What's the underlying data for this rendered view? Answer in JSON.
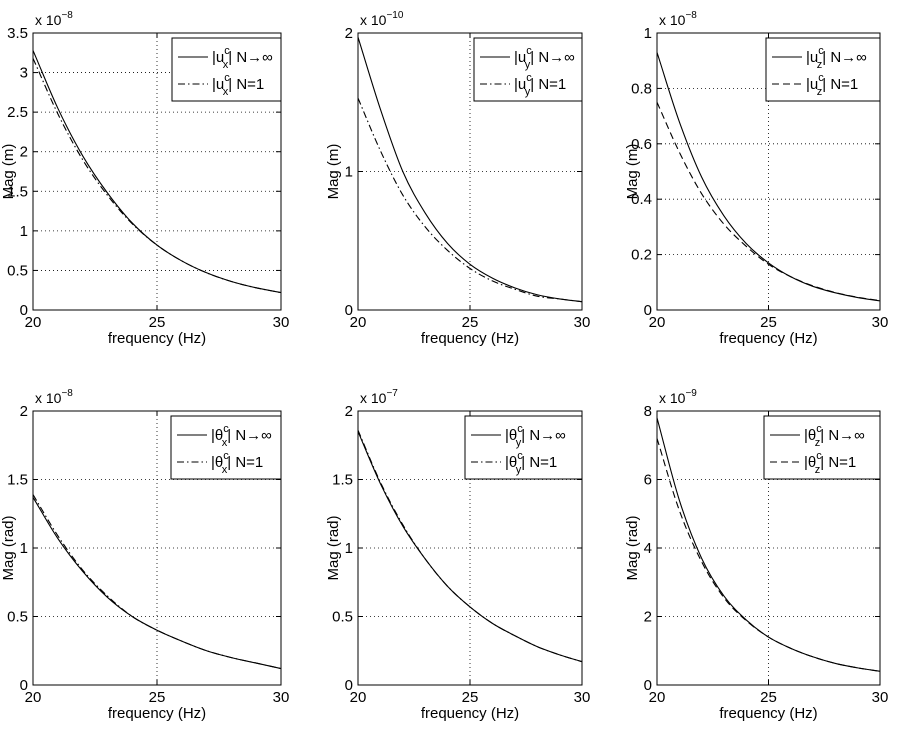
{
  "chart_data": [
    {
      "type": "line",
      "xlabel": "frequency (Hz)",
      "ylabel": "Mag (m)",
      "exponent_base": "x 10",
      "exponent_power": "−8",
      "xlim": [
        20,
        30
      ],
      "ylim": [
        0,
        3.5
      ],
      "xticks": [
        "20",
        "25",
        "30"
      ],
      "yticks": [
        "0",
        "0.5",
        "1",
        "1.5",
        "2",
        "2.5",
        "3",
        "3.5"
      ],
      "grid": true,
      "legend_position": "top-right",
      "series": [
        {
          "name": "|u_x^c| N→∞",
          "label_base": "|u",
          "label_sup": "c",
          "label_sub": "x",
          "label_rest": "| N→∞",
          "style": "solid",
          "x": [
            20,
            21,
            22,
            23,
            24,
            25,
            26,
            27,
            28,
            29,
            30
          ],
          "y": [
            3.28,
            2.55,
            1.95,
            1.48,
            1.1,
            0.82,
            0.62,
            0.47,
            0.36,
            0.28,
            0.22
          ]
        },
        {
          "name": "|u_x^c| N=1",
          "label_base": "|u",
          "label_sup": "c",
          "label_sub": "x",
          "label_rest": "| N=1",
          "style": "dashdot",
          "x": [
            20,
            21,
            22,
            23,
            24,
            25,
            26,
            27,
            28,
            29,
            30
          ],
          "y": [
            3.18,
            2.48,
            1.9,
            1.45,
            1.09,
            0.82,
            0.62,
            0.47,
            0.36,
            0.28,
            0.22
          ]
        }
      ]
    },
    {
      "type": "line",
      "xlabel": "frequency (Hz)",
      "ylabel": "Mag (m)",
      "exponent_base": "x 10",
      "exponent_power": "−10",
      "xlim": [
        20,
        30
      ],
      "ylim": [
        0,
        2
      ],
      "xticks": [
        "20",
        "25",
        "30"
      ],
      "yticks": [
        "0",
        "1",
        "2"
      ],
      "grid": true,
      "legend_position": "top-right",
      "series": [
        {
          "name": "|u_y^c| N→∞",
          "label_base": "|u",
          "label_sup": "c",
          "label_sub": "y",
          "label_rest": "| N→∞",
          "style": "solid",
          "x": [
            20,
            21,
            22,
            23,
            24,
            25,
            26,
            27,
            28,
            29,
            30
          ],
          "y": [
            1.97,
            1.45,
            1.0,
            0.7,
            0.48,
            0.33,
            0.23,
            0.16,
            0.11,
            0.08,
            0.06
          ]
        },
        {
          "name": "|u_y^c| N=1",
          "label_base": "|u",
          "label_sup": "c",
          "label_sub": "y",
          "label_rest": "| N=1",
          "style": "dashdot",
          "x": [
            20,
            21,
            22,
            23,
            24,
            25,
            26,
            27,
            28,
            29,
            30
          ],
          "y": [
            1.53,
            1.15,
            0.83,
            0.6,
            0.43,
            0.3,
            0.21,
            0.15,
            0.1,
            0.08,
            0.06
          ]
        }
      ]
    },
    {
      "type": "line",
      "xlabel": "frequency (Hz)",
      "ylabel": "Mag (m)",
      "exponent_base": "x 10",
      "exponent_power": "−8",
      "xlim": [
        20,
        30
      ],
      "ylim": [
        0,
        1
      ],
      "xticks": [
        "20",
        "25",
        "30"
      ],
      "yticks": [
        "0",
        "0.2",
        "0.4",
        "0.6",
        "0.8",
        "1"
      ],
      "grid": true,
      "legend_position": "top-right",
      "series": [
        {
          "name": "|u_z^c| N→∞",
          "label_base": "|u",
          "label_sup": "c",
          "label_sub": "z",
          "label_rest": "| N→∞",
          "style": "solid",
          "x": [
            20,
            21,
            22,
            23,
            24,
            25,
            26,
            27,
            28,
            29,
            30
          ],
          "y": [
            0.93,
            0.68,
            0.48,
            0.34,
            0.24,
            0.17,
            0.12,
            0.085,
            0.062,
            0.045,
            0.033
          ]
        },
        {
          "name": "|u_z^c| N=1",
          "label_base": "|u",
          "label_sup": "c",
          "label_sub": "z",
          "label_rest": "| N=1",
          "style": "dashed",
          "x": [
            20,
            21,
            22,
            23,
            24,
            25,
            26,
            27,
            28,
            29,
            30
          ],
          "y": [
            0.75,
            0.57,
            0.42,
            0.31,
            0.23,
            0.165,
            0.12,
            0.087,
            0.063,
            0.046,
            0.034
          ]
        }
      ]
    },
    {
      "type": "line",
      "xlabel": "frequency (Hz)",
      "ylabel": "Mag (rad)",
      "exponent_base": "x 10",
      "exponent_power": "−8",
      "xlim": [
        20,
        30
      ],
      "ylim": [
        0,
        2
      ],
      "xticks": [
        "20",
        "25",
        "30"
      ],
      "yticks": [
        "0",
        "0.5",
        "1",
        "1.5",
        "2"
      ],
      "grid": true,
      "legend_position": "top-right",
      "series": [
        {
          "name": "|θ_x^c| N→∞",
          "label_base": "|θ",
          "label_sup": "c",
          "label_sub": "x",
          "label_rest": "| N→∞",
          "style": "solid",
          "x": [
            20,
            21,
            22,
            23,
            24,
            25,
            26,
            27,
            28,
            29,
            30
          ],
          "y": [
            1.37,
            1.07,
            0.83,
            0.64,
            0.5,
            0.4,
            0.32,
            0.25,
            0.2,
            0.16,
            0.12
          ]
        },
        {
          "name": "|θ_x^c| N=1",
          "label_base": "|θ",
          "label_sup": "c",
          "label_sub": "x",
          "label_rest": "| N=1",
          "style": "dashdot",
          "x": [
            20,
            21,
            22,
            23,
            24,
            25,
            26,
            27,
            28,
            29,
            30
          ],
          "y": [
            1.39,
            1.09,
            0.84,
            0.65,
            0.5,
            0.4,
            0.32,
            0.25,
            0.2,
            0.16,
            0.12
          ]
        }
      ]
    },
    {
      "type": "line",
      "xlabel": "frequency (Hz)",
      "ylabel": "Mag (rad)",
      "exponent_base": "x 10",
      "exponent_power": "−7",
      "xlim": [
        20,
        30
      ],
      "ylim": [
        0,
        2
      ],
      "xticks": [
        "20",
        "25",
        "30"
      ],
      "yticks": [
        "0",
        "0.5",
        "1",
        "1.5",
        "2"
      ],
      "grid": true,
      "legend_position": "top-right",
      "series": [
        {
          "name": "|θ_y^c| N→∞",
          "label_base": "|θ",
          "label_sup": "c",
          "label_sub": "y",
          "label_rest": "| N→∞",
          "style": "solid",
          "x": [
            20,
            21,
            22,
            23,
            24,
            25,
            26,
            27,
            28,
            29,
            30
          ],
          "y": [
            1.85,
            1.47,
            1.16,
            0.92,
            0.72,
            0.57,
            0.45,
            0.36,
            0.28,
            0.22,
            0.17
          ]
        },
        {
          "name": "|θ_y^c| N=1",
          "label_base": "|θ",
          "label_sup": "c",
          "label_sub": "y",
          "label_rest": "| N=1",
          "style": "dashdot",
          "x": [
            20,
            21,
            22,
            23,
            24,
            25,
            26,
            27,
            28,
            29,
            30
          ],
          "y": [
            1.86,
            1.48,
            1.17,
            0.92,
            0.72,
            0.57,
            0.45,
            0.36,
            0.28,
            0.22,
            0.17
          ]
        }
      ]
    },
    {
      "type": "line",
      "xlabel": "frequency (Hz)",
      "ylabel": "Mag (rad)",
      "exponent_base": "x 10",
      "exponent_power": "−9",
      "xlim": [
        20,
        30
      ],
      "ylim": [
        0,
        8
      ],
      "xticks": [
        "20",
        "25",
        "30"
      ],
      "yticks": [
        "0",
        "2",
        "4",
        "6",
        "8"
      ],
      "grid": true,
      "legend_position": "top-right",
      "series": [
        {
          "name": "|θ_z^c| N→∞",
          "label_base": "|θ",
          "label_sup": "c",
          "label_sub": "z",
          "label_rest": "| N→∞",
          "style": "solid",
          "x": [
            20,
            21,
            22,
            23,
            24,
            25,
            26,
            27,
            28,
            29,
            30
          ],
          "y": [
            7.8,
            5.4,
            3.7,
            2.6,
            1.9,
            1.4,
            1.07,
            0.82,
            0.63,
            0.5,
            0.4
          ]
        },
        {
          "name": "|θ_z^c| N=1",
          "label_base": "|θ",
          "label_sup": "c",
          "label_sub": "z",
          "label_rest": "| N=1",
          "style": "dashed",
          "x": [
            20,
            21,
            22,
            23,
            24,
            25,
            26,
            27,
            28,
            29,
            30
          ],
          "y": [
            7.2,
            5.1,
            3.6,
            2.55,
            1.88,
            1.4,
            1.07,
            0.82,
            0.63,
            0.5,
            0.4
          ]
        }
      ]
    }
  ]
}
